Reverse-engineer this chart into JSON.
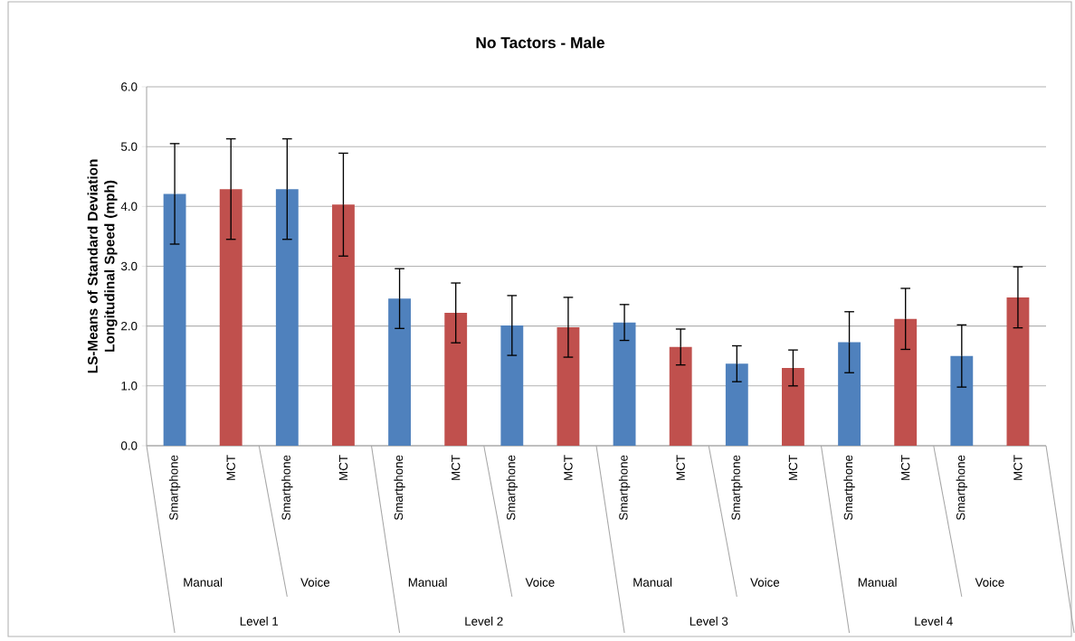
{
  "chart_data": {
    "type": "bar",
    "title": "No Tactors - Male",
    "ylabel": "LS-Means of Standard Deviation Longitudinal Speed (mph)",
    "categories": [
      "Smartphone",
      "MCT",
      "Smartphone",
      "MCT",
      "Smartphone",
      "MCT",
      "Smartphone",
      "MCT",
      "Smartphone",
      "MCT",
      "Smartphone",
      "MCT",
      "Smartphone",
      "MCT",
      "Smartphone",
      "MCT"
    ],
    "values": [
      4.21,
      4.29,
      4.29,
      4.03,
      2.46,
      2.22,
      2.01,
      1.98,
      2.06,
      1.65,
      1.37,
      1.3,
      1.73,
      2.12,
      1.5,
      2.48
    ],
    "errors": [
      0.84,
      0.84,
      0.84,
      0.86,
      0.5,
      0.5,
      0.5,
      0.5,
      0.3,
      0.3,
      0.3,
      0.3,
      0.51,
      0.51,
      0.52,
      0.51
    ],
    "colors": [
      "#4f81bd",
      "#c0504d",
      "#4f81bd",
      "#c0504d",
      "#4f81bd",
      "#c0504d",
      "#4f81bd",
      "#c0504d",
      "#4f81bd",
      "#c0504d",
      "#4f81bd",
      "#c0504d",
      "#4f81bd",
      "#c0504d",
      "#4f81bd",
      "#c0504d"
    ],
    "ylim": [
      0,
      6
    ],
    "yticks": [
      {
        "value": 0,
        "label": "0.0"
      },
      {
        "value": 1,
        "label": "1.0"
      },
      {
        "value": 2,
        "label": "2.0"
      },
      {
        "value": 3,
        "label": "3.0"
      },
      {
        "value": 4,
        "label": "4.0"
      },
      {
        "value": 5,
        "label": "5.0"
      },
      {
        "value": 6,
        "label": "6.0"
      }
    ],
    "grid": "y",
    "annotations": [
      "Manual",
      "Voice",
      "Manual",
      "Voice",
      "Manual",
      "Voice",
      "Manual",
      "Voice",
      "Level 1",
      "Level 2",
      "Level 3",
      "Level 4"
    ]
  }
}
